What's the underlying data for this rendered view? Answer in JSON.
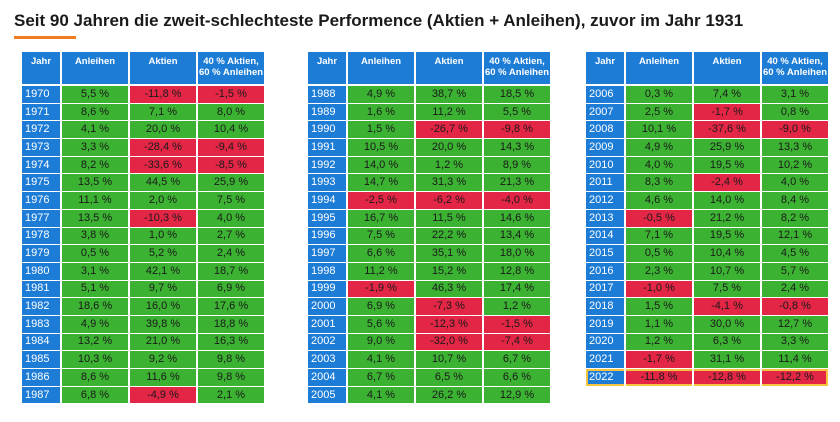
{
  "title": "Seit 90 Jahren die zweit-schlechteste Performence (Aktien + Anleihen), zuvor im Jahr 1931",
  "colors": {
    "header_blue": "#1d7cd6",
    "positive_green": "#3cb232",
    "negative_red": "#e32645",
    "highlight_yellow": "#f5c242",
    "accent_orange": "#f07c1e"
  },
  "headers": {
    "year": "Jahr",
    "bonds": "Anleihen",
    "stocks": "Aktien",
    "mix_line1": "40 % Aktien,",
    "mix_line2": "60 % Anleihen"
  },
  "chart_data": {
    "type": "table",
    "columns": [
      "Jahr",
      "Anleihen",
      "Aktien",
      "40 % Aktien, 60 % Anleihen"
    ],
    "unit": "%",
    "highlighted_year": "2022",
    "rows": [
      [
        "1970",
        "5,5 %",
        "-11,8 %",
        "-1,5 %"
      ],
      [
        "1971",
        "8,6 %",
        "7,1 %",
        "8,0 %"
      ],
      [
        "1972",
        "4,1 %",
        "20,0 %",
        "10,4 %"
      ],
      [
        "1973",
        "3,3 %",
        "-28,4 %",
        "-9,4 %"
      ],
      [
        "1974",
        "8,2 %",
        "-33,6 %",
        "-8,5 %"
      ],
      [
        "1975",
        "13,5 %",
        "44,5 %",
        "25,9 %"
      ],
      [
        "1976",
        "11,1 %",
        "2,0 %",
        "7,5 %"
      ],
      [
        "1977",
        "13,5 %",
        "-10,3 %",
        "4,0 %"
      ],
      [
        "1978",
        "3,8 %",
        "1,0 %",
        "2,7 %"
      ],
      [
        "1979",
        "0,5 %",
        "5,2 %",
        "2,4 %"
      ],
      [
        "1980",
        "3,1 %",
        "42,1 %",
        "18,7 %"
      ],
      [
        "1981",
        "5,1 %",
        "9,7 %",
        "6,9 %"
      ],
      [
        "1982",
        "18,6 %",
        "16,0 %",
        "17,6 %"
      ],
      [
        "1983",
        "4,9 %",
        "39,8 %",
        "18,8 %"
      ],
      [
        "1984",
        "13,2 %",
        "21,0 %",
        "16,3 %"
      ],
      [
        "1985",
        "10,3 %",
        "9,2 %",
        "9,8 %"
      ],
      [
        "1986",
        "8,6 %",
        "11,6 %",
        "9,8 %"
      ],
      [
        "1987",
        "6,8 %",
        "-4,9 %",
        "2,1 %"
      ],
      [
        "1988",
        "4,9 %",
        "38,7 %",
        "18,5 %"
      ],
      [
        "1989",
        "1,6 %",
        "11,2 %",
        "5,5 %"
      ],
      [
        "1990",
        "1,5 %",
        "-26,7 %",
        "-9,8 %"
      ],
      [
        "1991",
        "10,5 %",
        "20,0 %",
        "14,3 %"
      ],
      [
        "1992",
        "14,0 %",
        "1,2 %",
        "8,9 %"
      ],
      [
        "1993",
        "14,7 %",
        "31,3 %",
        "21,3 %"
      ],
      [
        "1994",
        "-2,5 %",
        "-6,2 %",
        "-4,0 %"
      ],
      [
        "1995",
        "16,7 %",
        "11,5 %",
        "14,6 %"
      ],
      [
        "1996",
        "7,5 %",
        "22,2 %",
        "13,4 %"
      ],
      [
        "1997",
        "6,6 %",
        "35,1 %",
        "18,0 %"
      ],
      [
        "1998",
        "11,2 %",
        "15,2 %",
        "12,8 %"
      ],
      [
        "1999",
        "-1,9 %",
        "46,3 %",
        "17,4 %"
      ],
      [
        "2000",
        "6,9 %",
        "-7,3 %",
        "1,2 %"
      ],
      [
        "2001",
        "5,6 %",
        "-12,3 %",
        "-1,5 %"
      ],
      [
        "2002",
        "9,0 %",
        "-32,0 %",
        "-7,4 %"
      ],
      [
        "2003",
        "4,1 %",
        "10,7 %",
        "6,7 %"
      ],
      [
        "2004",
        "6,7 %",
        "6,5 %",
        "6,6 %"
      ],
      [
        "2005",
        "4,1 %",
        "26,2 %",
        "12,9 %"
      ],
      [
        "2006",
        "0,3 %",
        "7,4 %",
        "3,1 %"
      ],
      [
        "2007",
        "2,5 %",
        "-1,7 %",
        "0,8 %"
      ],
      [
        "2008",
        "10,1 %",
        "-37,6 %",
        "-9,0 %"
      ],
      [
        "2009",
        "4,9 %",
        "25,9 %",
        "13,3 %"
      ],
      [
        "2010",
        "4,0 %",
        "19,5 %",
        "10,2 %"
      ],
      [
        "2011",
        "8,3 %",
        "-2,4 %",
        "4,0 %"
      ],
      [
        "2012",
        "4,6 %",
        "14,0 %",
        "8,4 %"
      ],
      [
        "2013",
        "-0,5 %",
        "21,2 %",
        "8,2 %"
      ],
      [
        "2014",
        "7,1 %",
        "19,5 %",
        "12,1 %"
      ],
      [
        "2015",
        "0,5 %",
        "10,4 %",
        "4,5 %"
      ],
      [
        "2016",
        "2,3 %",
        "10,7 %",
        "5,7 %"
      ],
      [
        "2017",
        "-1,0 %",
        "7,5 %",
        "2,4 %"
      ],
      [
        "2018",
        "1,5 %",
        "-4,1 %",
        "-0,8 %"
      ],
      [
        "2019",
        "1,1 %",
        "30,0 %",
        "12,7 %"
      ],
      [
        "2020",
        "1,2 %",
        "6,3 %",
        "3,3 %"
      ],
      [
        "2021",
        "-1,7 %",
        "31,1 %",
        "11,4 %"
      ],
      [
        "2022",
        "-11,8 %",
        "-12,8 %",
        "-12,2 %"
      ]
    ]
  }
}
